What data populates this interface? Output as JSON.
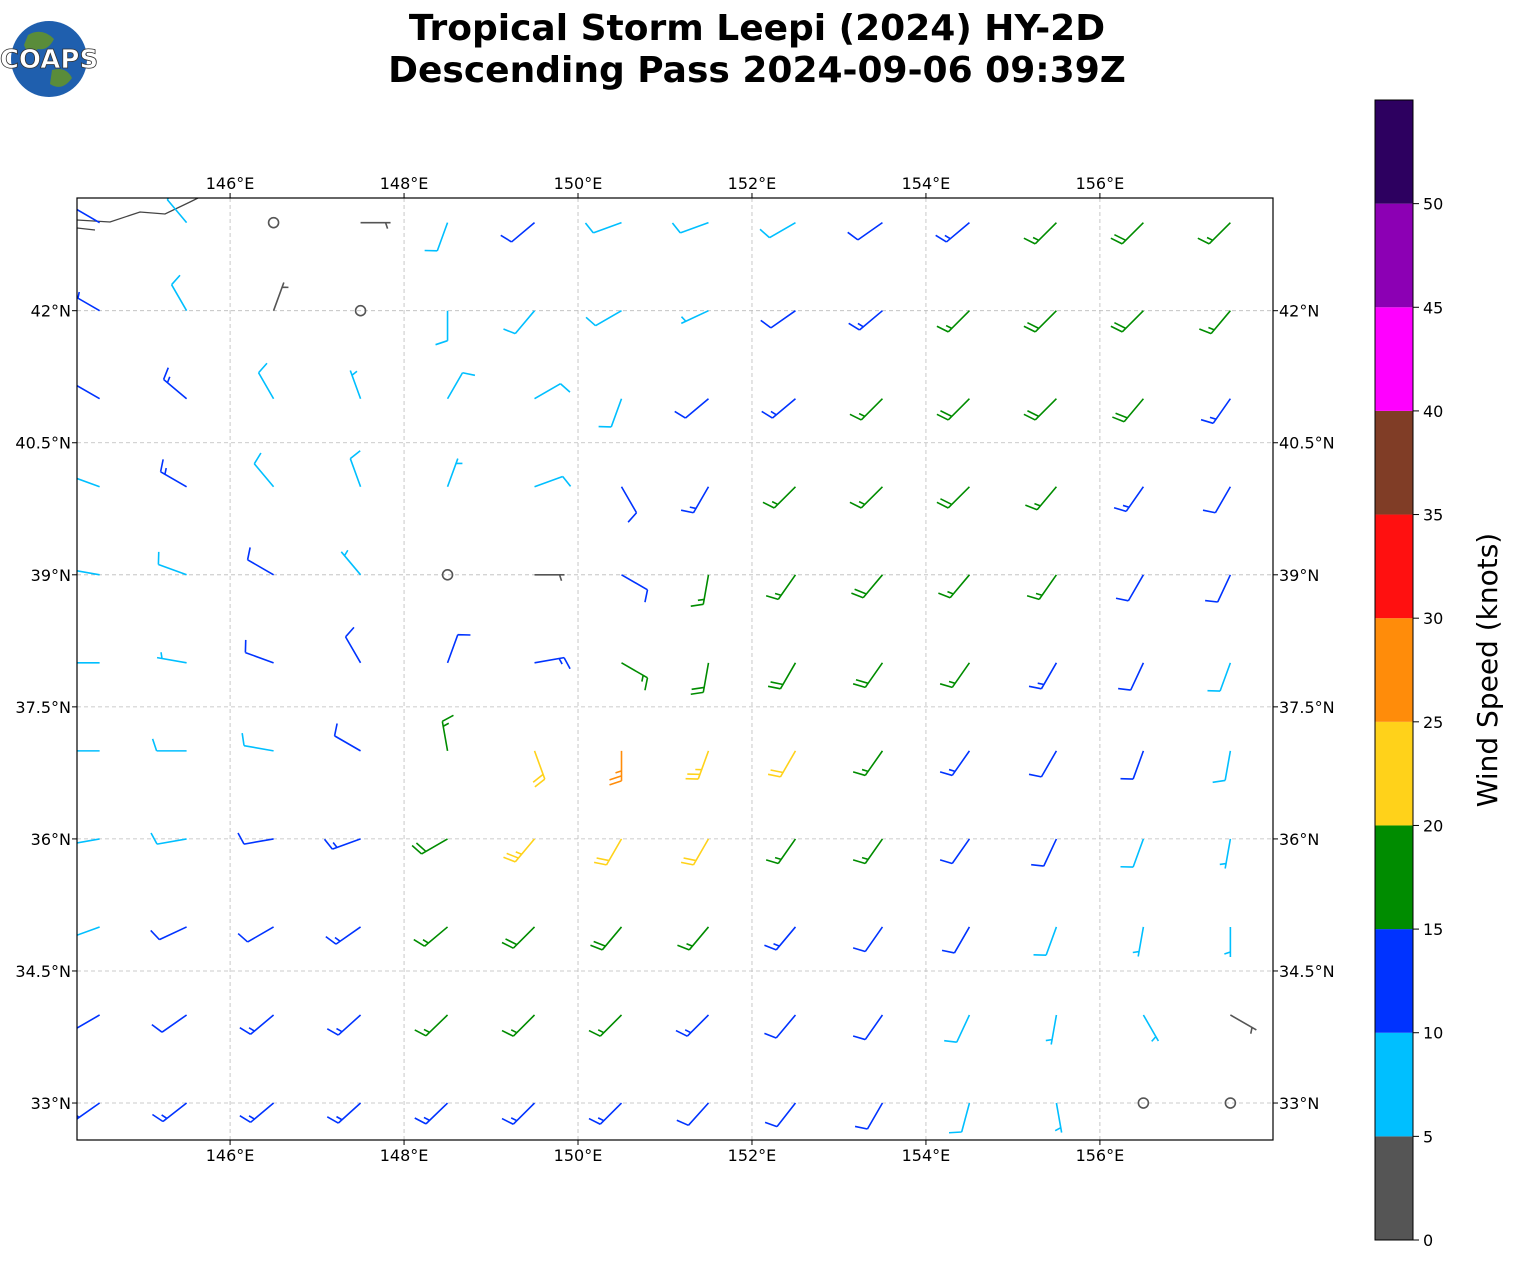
{
  "header": {
    "title_line1": "Tropical Storm Leepi (2024) HY-2D",
    "title_line2": "Descending Pass 2024-09-06 09:39Z",
    "logo": "COAPS"
  },
  "map": {
    "xlim": [
      144.24,
      157.99
    ],
    "ylim": [
      32.58,
      43.28
    ],
    "xticks": [
      {
        "value": 146,
        "label": "146°E"
      },
      {
        "value": 148,
        "label": "148°E"
      },
      {
        "value": 150,
        "label": "150°E"
      },
      {
        "value": 152,
        "label": "152°E"
      },
      {
        "value": 154,
        "label": "154°E"
      },
      {
        "value": 156,
        "label": "156°E"
      }
    ],
    "yticks": [
      {
        "value": 33,
        "label": "33°N"
      },
      {
        "value": 34.5,
        "label": "34.5°N"
      },
      {
        "value": 36,
        "label": "36°N"
      },
      {
        "value": 37.5,
        "label": "37.5°N"
      },
      {
        "value": 39,
        "label": "39°N"
      },
      {
        "value": 40.5,
        "label": "40.5°N"
      },
      {
        "value": 42,
        "label": "42°N"
      }
    ],
    "grid": true
  },
  "wind": {
    "lons": [
      144.5,
      145.5,
      146.5,
      147.5,
      148.5,
      149.5,
      150.5,
      151.5,
      152.5,
      153.5,
      154.5,
      155.5,
      156.5,
      157.5
    ],
    "lats": [
      43,
      42,
      41,
      40,
      39,
      38,
      37,
      36,
      35,
      34,
      33
    ],
    "speed": [
      [
        12,
        8,
        3,
        4,
        9,
        12,
        8,
        8,
        9,
        12,
        14,
        17,
        18,
        17
      ],
      [
        13,
        8,
        4,
        3,
        8,
        9,
        8,
        7,
        11,
        14,
        17,
        18,
        18,
        17
      ],
      [
        12,
        13,
        9,
        7,
        8,
        9,
        9,
        12,
        14,
        16,
        18,
        18,
        18,
        14
      ],
      [
        9,
        13,
        9,
        8,
        6,
        8,
        12,
        14,
        16,
        17,
        18,
        17,
        14,
        12
      ],
      [
        8,
        9,
        11,
        5,
        3,
        4,
        12,
        15,
        17,
        18,
        17,
        15,
        12,
        11
      ],
      [
        8,
        7,
        10,
        11,
        12,
        13,
        17,
        18,
        19,
        18,
        16,
        13,
        11,
        9
      ],
      [
        8,
        8,
        9,
        12,
        17,
        22,
        26,
        23,
        20,
        17,
        14,
        12,
        10,
        8
      ],
      [
        8,
        9,
        12,
        14,
        18,
        23,
        22,
        20,
        17,
        15,
        12,
        10,
        8,
        7
      ],
      [
        8,
        10,
        12,
        14,
        17,
        19,
        18,
        16,
        14,
        12,
        10,
        8,
        7,
        6
      ],
      [
        11,
        12,
        13,
        14,
        15,
        16,
        15,
        14,
        12,
        11,
        9,
        7,
        5,
        4
      ],
      [
        13,
        13,
        13,
        14,
        14,
        14,
        13,
        12,
        11,
        10,
        8,
        6,
        3,
        3
      ]
    ],
    "direction": [
      [
        300,
        320,
        0,
        90,
        200,
        230,
        250,
        250,
        240,
        235,
        230,
        225,
        225,
        225
      ],
      [
        300,
        330,
        20,
        100,
        180,
        220,
        240,
        245,
        235,
        230,
        225,
        225,
        225,
        220
      ],
      [
        300,
        310,
        330,
        340,
        30,
        60,
        200,
        230,
        230,
        225,
        225,
        225,
        220,
        215
      ],
      [
        290,
        300,
        320,
        340,
        20,
        70,
        150,
        210,
        225,
        225,
        225,
        220,
        215,
        210
      ],
      [
        280,
        290,
        300,
        320,
        0,
        90,
        120,
        190,
        215,
        220,
        220,
        215,
        210,
        205
      ],
      [
        270,
        280,
        290,
        330,
        20,
        80,
        120,
        190,
        210,
        215,
        215,
        210,
        205,
        200
      ],
      [
        270,
        270,
        280,
        300,
        350,
        160,
        180,
        200,
        210,
        215,
        215,
        210,
        200,
        190
      ],
      [
        260,
        260,
        260,
        250,
        240,
        220,
        210,
        210,
        215,
        215,
        215,
        205,
        200,
        190
      ],
      [
        250,
        245,
        240,
        235,
        230,
        225,
        220,
        220,
        220,
        215,
        210,
        200,
        190,
        180
      ],
      [
        240,
        235,
        230,
        228,
        226,
        225,
        225,
        225,
        220,
        215,
        205,
        190,
        150,
        120
      ],
      [
        235,
        232,
        230,
        228,
        226,
        225,
        225,
        222,
        218,
        210,
        195,
        170,
        90,
        60
      ]
    ]
  },
  "colorbar": {
    "label": "Wind Speed (knots)",
    "bounds": [
      0,
      5,
      10,
      15,
      20,
      25,
      30,
      35,
      40,
      45,
      50,
      55
    ],
    "colors": [
      "#555555",
      "#00bfff",
      "#0033ff",
      "#008c00",
      "#ffd21a",
      "#ff8c0a",
      "#ff1010",
      "#803d26",
      "#ff00ff",
      "#8c00b4",
      "#2d0060"
    ],
    "ticks": [
      0,
      5,
      10,
      15,
      20,
      25,
      30,
      35,
      40,
      45,
      50
    ]
  }
}
